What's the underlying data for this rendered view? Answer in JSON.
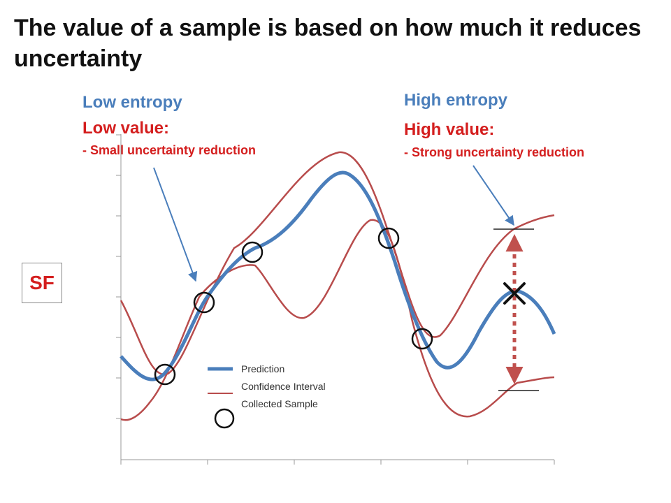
{
  "slide": {
    "title": "The value of a sample is based on how much it reduces uncertainty",
    "left_annotation": {
      "entropy": "Low entropy",
      "value": "Low value:",
      "detail": "- Small uncertainty reduction"
    },
    "right_annotation": {
      "entropy": "High entropy",
      "value": "High value:",
      "detail": "- Strong uncertainty reduction"
    },
    "axis_label": "SF"
  },
  "legend": {
    "prediction": "Prediction",
    "confidence": "Confidence Interval",
    "sample": "Collected Sample"
  },
  "colors": {
    "prediction": "#4a7ebb",
    "confidence": "#b84c4c",
    "annotation_blue": "#4a7ebb",
    "annotation_red": "#d41e1e",
    "arrow_dotted": "#c0504d"
  }
}
